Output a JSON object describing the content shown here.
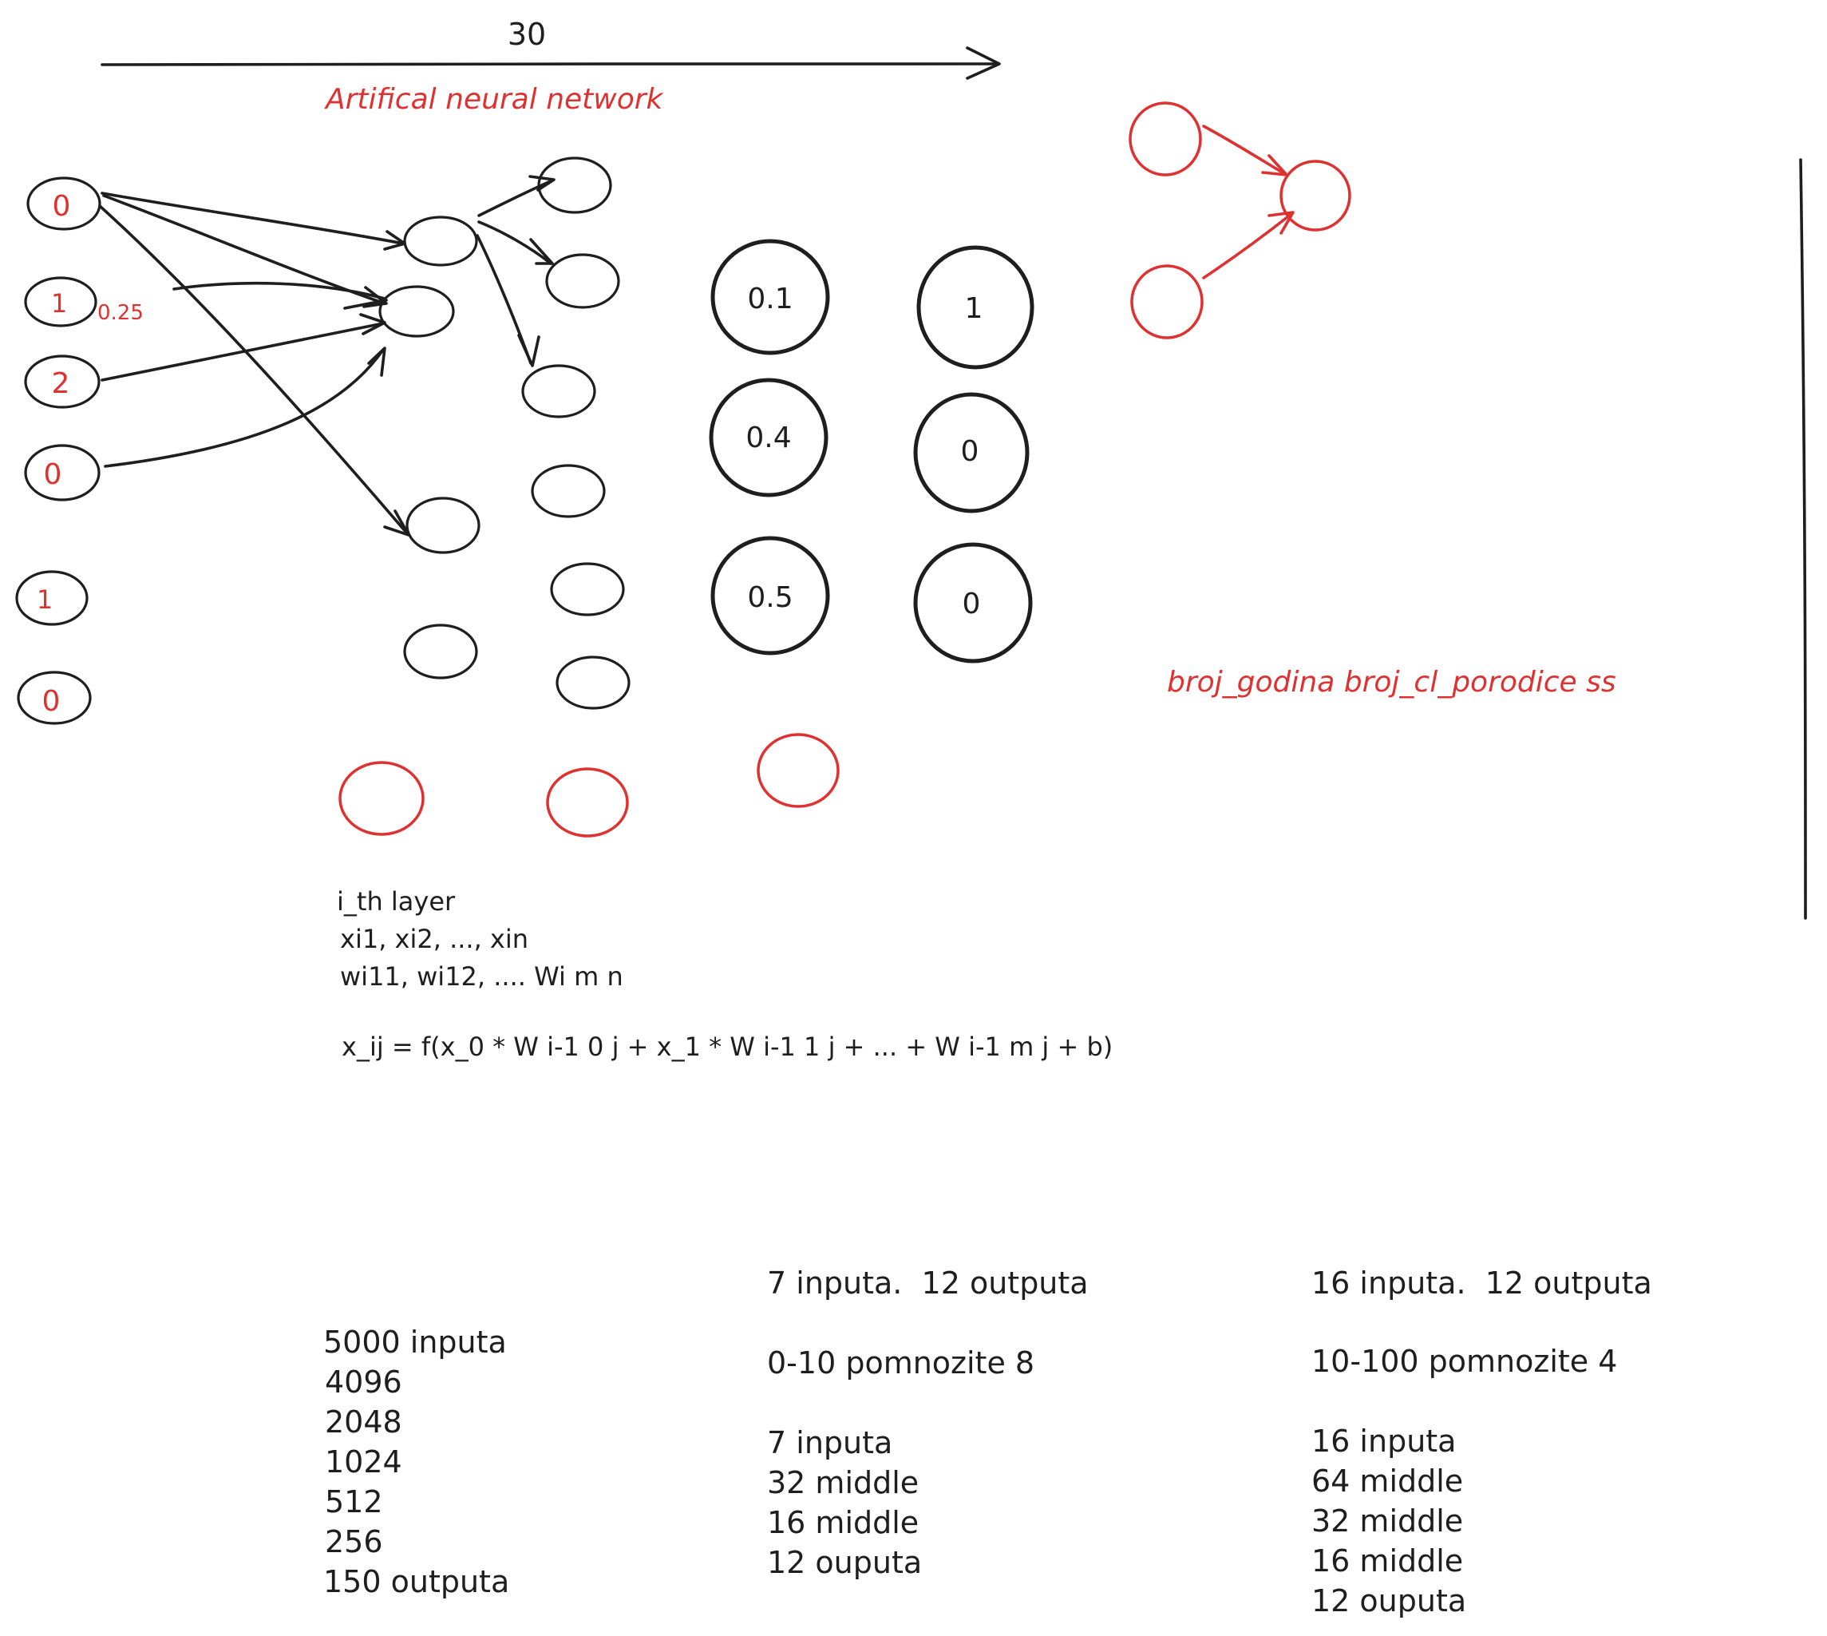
{
  "title": {
    "arrow_label": "30",
    "subtitle": "Artifical neural network"
  },
  "input_nodes": [
    "0",
    "1",
    "2",
    "0",
    "1",
    "0"
  ],
  "edge_weight": "0.25",
  "probability_nodes": [
    "0.1",
    "0.4",
    "0.5"
  ],
  "one_hot_nodes": [
    "1",
    "0",
    "0"
  ],
  "features_label": "broj_godina broj_cl_porodice ss",
  "formula": {
    "lines": [
      "i_th layer",
      "xi1, xi2, ..., xin",
      "wi11, wi12, .... Wi m n"
    ],
    "equation": "x_ij = f(x_0 * W i-1 0 j + x_1 * W i-1 1 j + ... + W i-1 m j + b)"
  },
  "config_a": [
    "5000 inputa",
    "4096",
    "2048",
    "1024",
    "512",
    "256",
    "150 outputa"
  ],
  "config_b": {
    "header": "7 inputa.  12 outputa",
    "multiply": "0-10 pomnozite 8",
    "layers": [
      "7 inputa",
      "32 middle",
      "16 middle",
      "12 ouputa"
    ]
  },
  "config_c": {
    "header": "16 inputa.  12 outputa",
    "multiply": "10-100 pomnozite 4",
    "layers": [
      "16 inputa",
      "64 middle",
      "32 middle",
      "16 middle",
      "12 ouputa"
    ]
  },
  "colors": {
    "ink": "#1e1e1e",
    "accent": "#e03131",
    "background": "#ffffff"
  }
}
